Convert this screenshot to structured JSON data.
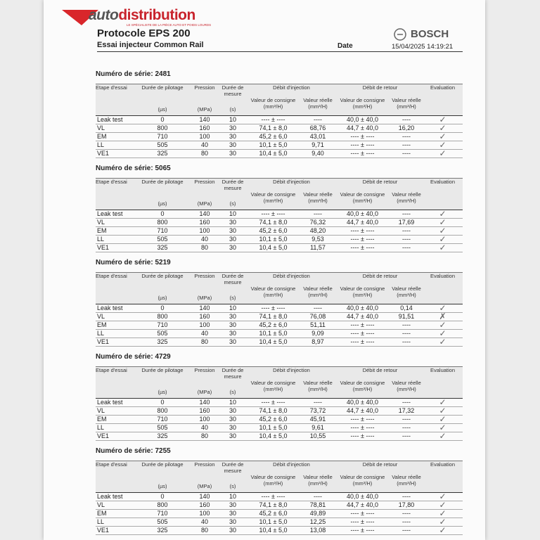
{
  "header": {
    "logo_prefix": "auto",
    "logo_name": "distribution",
    "tagline": "LE SPÉCIALISTE DE LA PIÈCE AUTO ET POIDS LOURDS",
    "title": "Protocole EPS 200",
    "subtitle": "Essai injecteur Common Rail",
    "brand": "BOSCH",
    "date_label": "Date",
    "date": "15/04/2025 14:19:21"
  },
  "columns": {
    "step": "Etape d'essai",
    "pilot": "Durée de pilotage",
    "pressure": "Pression",
    "duration": "Durée de mesure",
    "injection": "Débit d'injection",
    "return": "Débit de retour",
    "evaluation": "Evaluation",
    "setpoint": "Valeur de consigne",
    "actual": "Valeur réelle",
    "unit_us": "(µs)",
    "unit_mpa": "(MPa)",
    "unit_s": "(s)",
    "unit_flow": "(mm³/H)"
  },
  "sections": [
    {
      "label": "Numéro de série:",
      "serial": "2481",
      "rows": [
        [
          "Leak test",
          "0",
          "140",
          "10",
          "---- ± ----",
          "----",
          "40,0 ± 40,0",
          "----",
          "✓"
        ],
        [
          "VL",
          "800",
          "160",
          "30",
          "74,1 ± 8,0",
          "68,76",
          "44,7 ± 40,0",
          "16,20",
          "✓"
        ],
        [
          "EM",
          "710",
          "100",
          "30",
          "45,2 ± 6,0",
          "43,01",
          "---- ± ----",
          "----",
          "✓"
        ],
        [
          "LL",
          "505",
          "40",
          "30",
          "10,1 ± 5,0",
          "9,71",
          "---- ± ----",
          "----",
          "✓"
        ],
        [
          "VE1",
          "325",
          "80",
          "30",
          "10,4 ± 5,0",
          "9,40",
          "---- ± ----",
          "----",
          "✓"
        ]
      ]
    },
    {
      "label": "Numéro de série:",
      "serial": "5065",
      "rows": [
        [
          "Leak test",
          "0",
          "140",
          "10",
          "---- ± ----",
          "----",
          "40,0 ± 40,0",
          "----",
          "✓"
        ],
        [
          "VL",
          "800",
          "160",
          "30",
          "74,1 ± 8,0",
          "76,32",
          "44,7 ± 40,0",
          "17,69",
          "✓"
        ],
        [
          "EM",
          "710",
          "100",
          "30",
          "45,2 ± 6,0",
          "48,20",
          "---- ± ----",
          "----",
          "✓"
        ],
        [
          "LL",
          "505",
          "40",
          "30",
          "10,1 ± 5,0",
          "9,53",
          "---- ± ----",
          "----",
          "✓"
        ],
        [
          "VE1",
          "325",
          "80",
          "30",
          "10,4 ± 5,0",
          "11,57",
          "---- ± ----",
          "----",
          "✓"
        ]
      ]
    },
    {
      "label": "Numéro de série:",
      "serial": "5219",
      "rows": [
        [
          "Leak test",
          "0",
          "140",
          "10",
          "---- ± ----",
          "----",
          "40,0 ± 40,0",
          "0,14",
          "✓"
        ],
        [
          "VL",
          "800",
          "160",
          "30",
          "74,1 ± 8,0",
          "76,08",
          "44,7 ± 40,0",
          "91,51",
          "✗"
        ],
        [
          "EM",
          "710",
          "100",
          "30",
          "45,2 ± 6,0",
          "51,11",
          "---- ± ----",
          "----",
          "✓"
        ],
        [
          "LL",
          "505",
          "40",
          "30",
          "10,1 ± 5,0",
          "9,09",
          "---- ± ----",
          "----",
          "✓"
        ],
        [
          "VE1",
          "325",
          "80",
          "30",
          "10,4 ± 5,0",
          "8,97",
          "---- ± ----",
          "----",
          "✓"
        ]
      ]
    },
    {
      "label": "Numéro de série:",
      "serial": "4729",
      "rows": [
        [
          "Leak test",
          "0",
          "140",
          "10",
          "---- ± ----",
          "----",
          "40,0 ± 40,0",
          "----",
          "✓"
        ],
        [
          "VL",
          "800",
          "160",
          "30",
          "74,1 ± 8,0",
          "73,72",
          "44,7 ± 40,0",
          "17,32",
          "✓"
        ],
        [
          "EM",
          "710",
          "100",
          "30",
          "45,2 ± 6,0",
          "45,91",
          "---- ± ----",
          "----",
          "✓"
        ],
        [
          "LL",
          "505",
          "40",
          "30",
          "10,1 ± 5,0",
          "9,61",
          "---- ± ----",
          "----",
          "✓"
        ],
        [
          "VE1",
          "325",
          "80",
          "30",
          "10,4 ± 5,0",
          "10,55",
          "---- ± ----",
          "----",
          "✓"
        ]
      ]
    },
    {
      "label": "Numéro de série:",
      "serial": "7255",
      "rows": [
        [
          "Leak test",
          "0",
          "140",
          "10",
          "---- ± ----",
          "----",
          "40,0 ± 40,0",
          "----",
          "✓"
        ],
        [
          "VL",
          "800",
          "160",
          "30",
          "74,1 ± 8,0",
          "78,81",
          "44,7 ± 40,0",
          "17,80",
          "✓"
        ],
        [
          "EM",
          "710",
          "100",
          "30",
          "45,2 ± 6,0",
          "49,89",
          "---- ± ----",
          "----",
          "✓"
        ],
        [
          "LL",
          "505",
          "40",
          "30",
          "10,1 ± 5,0",
          "12,25",
          "---- ± ----",
          "----",
          "✓"
        ],
        [
          "VE1",
          "325",
          "80",
          "30",
          "10,4 ± 5,0",
          "13,08",
          "---- ± ----",
          "----",
          "✓"
        ]
      ]
    }
  ]
}
